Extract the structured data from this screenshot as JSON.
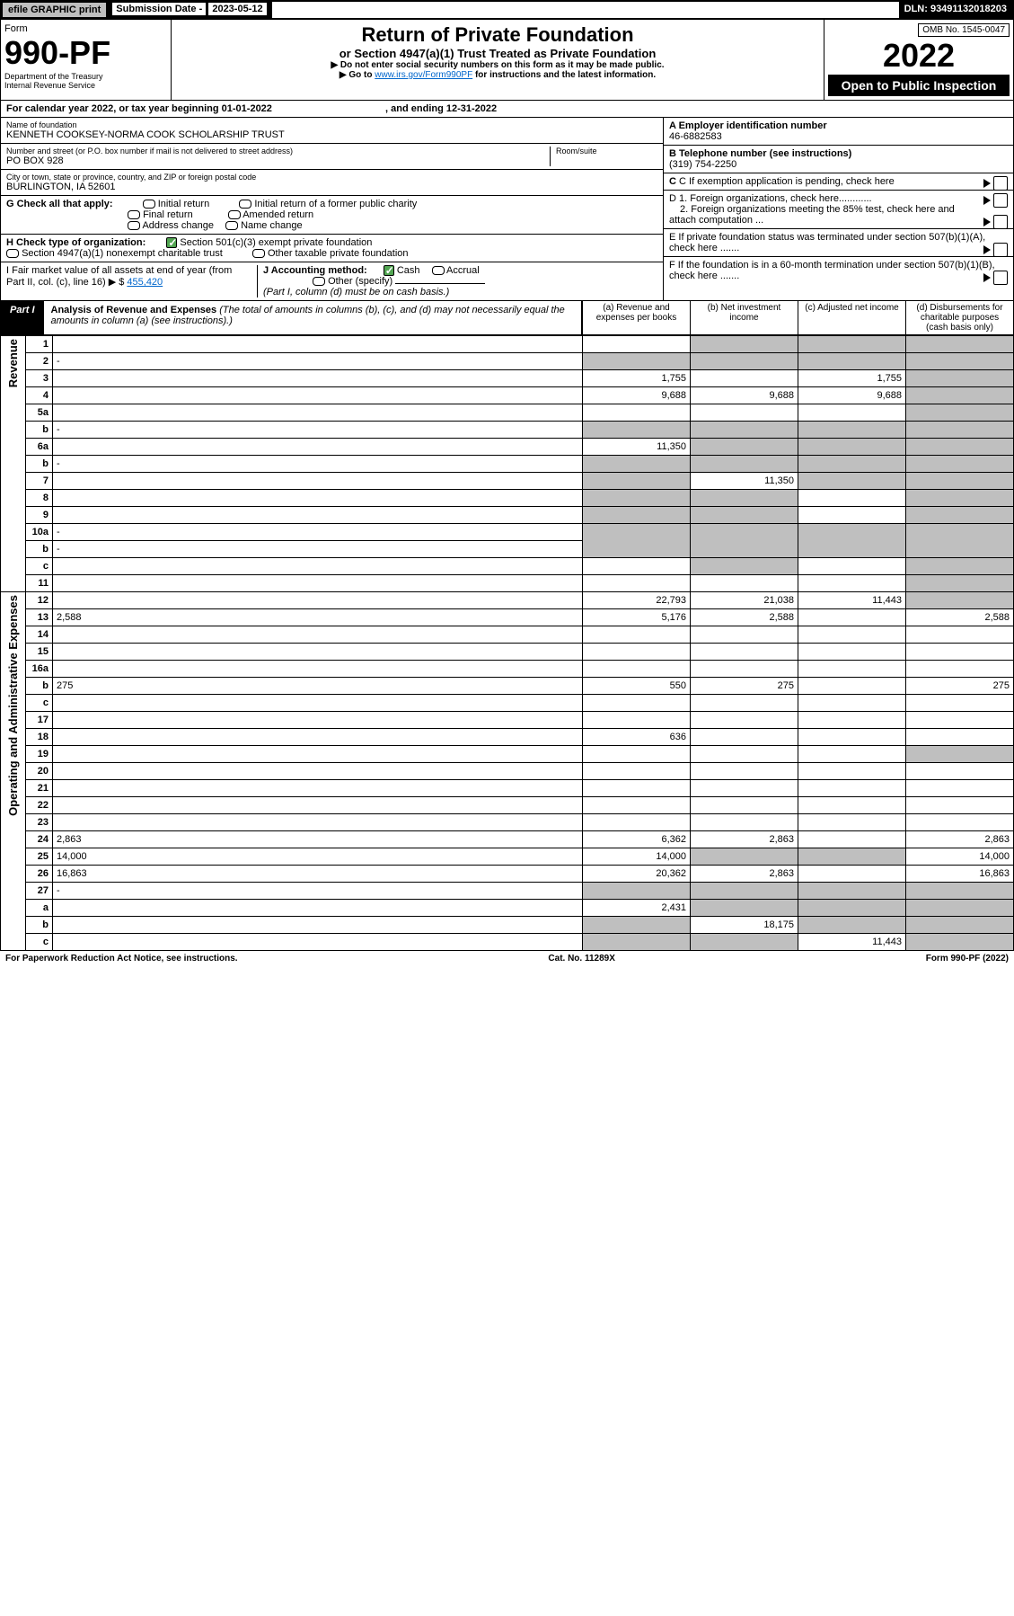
{
  "topbar": {
    "efile": "efile GRAPHIC print",
    "sub_label": "Submission Date -",
    "sub_date": "2023-05-12",
    "dln": "DLN: 93491132018203"
  },
  "header": {
    "form": "Form",
    "code": "990-PF",
    "dept": "Department of the Treasury",
    "irs": "Internal Revenue Service",
    "title": "Return of Private Foundation",
    "subtitle": "or Section 4947(a)(1) Trust Treated as Private Foundation",
    "note1": "▶ Do not enter social security numbers on this form as it may be made public.",
    "note2_a": "▶ Go to ",
    "note2_link": "www.irs.gov/Form990PF",
    "note2_b": " for instructions and the latest information.",
    "omb_label": "OMB No. 1545-0047",
    "year": "2022",
    "open": "Open to Public Inspection"
  },
  "calbar": {
    "a": "For calendar year 2022, or tax year beginning 01-01-2022",
    "b": ", and ending 12-31-2022"
  },
  "left": {
    "name_lbl": "Name of foundation",
    "name": "KENNETH COOKSEY-NORMA COOK SCHOLARSHIP TRUST",
    "addr_lbl": "Number and street (or P.O. box number if mail is not delivered to street address)",
    "addr": "PO BOX 928",
    "room_lbl": "Room/suite",
    "city_lbl": "City or town, state or province, country, and ZIP or foreign postal code",
    "city": "BURLINGTON, IA  52601",
    "G": "G Check all that apply:",
    "G1": "Initial return",
    "G2": "Final return",
    "G3": "Address change",
    "G4": "Initial return of a former public charity",
    "G5": "Amended return",
    "G6": "Name change",
    "H": "H Check type of organization:",
    "H1": "Section 501(c)(3) exempt private foundation",
    "H2": "Section 4947(a)(1) nonexempt charitable trust",
    "H3": "Other taxable private foundation",
    "I": "I Fair market value of all assets at end of year (from Part II, col. (c), line 16) ▶ $",
    "I_val": "455,420",
    "J": "J Accounting method:",
    "J1": "Cash",
    "J2": "Accrual",
    "J3": "Other (specify)",
    "J_note": "(Part I, column (d) must be on cash basis.)"
  },
  "right": {
    "A_lbl": "A Employer identification number",
    "A_val": "46-6882583",
    "B_lbl": "B Telephone number (see instructions)",
    "B_val": "(319) 754-2250",
    "C": "C If exemption application is pending, check here",
    "D1": "D 1. Foreign organizations, check here............",
    "D2": "2. Foreign organizations meeting the 85% test, check here and attach computation ...",
    "E": "E If private foundation status was terminated under section 507(b)(1)(A), check here .......",
    "F": "F If the foundation is in a 60-month termination under section 507(b)(1)(B), check here ......."
  },
  "partI": {
    "lbl": "Part I",
    "title": "Analysis of Revenue and Expenses",
    "sub": "(The total of amounts in columns (b), (c), and (d) may not necessarily equal the amounts in column (a) (see instructions).)",
    "ca": "(a) Revenue and expenses per books",
    "cb": "(b) Net investment income",
    "cc": "(c) Adjusted net income",
    "cd": "(d) Disbursements for charitable purposes (cash basis only)"
  },
  "sideLabels": {
    "rev": "Revenue",
    "exp": "Operating and Administrative Expenses"
  },
  "rows": [
    {
      "n": "1",
      "d": "",
      "a": "",
      "b": "",
      "c": "",
      "sb": "y",
      "sc": "y",
      "sd": "y"
    },
    {
      "n": "2",
      "d": "-",
      "a": "-",
      "b": "-",
      "c": "-"
    },
    {
      "n": "3",
      "d": "",
      "a": "1,755",
      "b": "",
      "c": "1,755",
      "sd": "y"
    },
    {
      "n": "4",
      "d": "",
      "a": "9,688",
      "b": "9,688",
      "c": "9,688",
      "sd": "y"
    },
    {
      "n": "5a",
      "d": "",
      "a": "",
      "b": "",
      "c": "",
      "sd": "y"
    },
    {
      "n": "b",
      "d": "-",
      "a": "-",
      "b": "-",
      "c": "-",
      "sa": "y",
      "sb": "y",
      "sc": "y",
      "sd": "y"
    },
    {
      "n": "6a",
      "d": "",
      "a": "11,350",
      "b": "",
      "c": "",
      "sb": "y",
      "sc": "y",
      "sd": "y"
    },
    {
      "n": "b",
      "d": "-",
      "a": "-",
      "b": "-",
      "c": "-",
      "sa": "y",
      "sb": "y",
      "sc": "y",
      "sd": "y"
    },
    {
      "n": "7",
      "d": "",
      "a": "",
      "b": "11,350",
      "c": "",
      "sa": "y",
      "sc": "y",
      "sd": "y"
    },
    {
      "n": "8",
      "d": "",
      "a": "",
      "b": "",
      "c": "",
      "sa": "y",
      "sb": "y",
      "sd": "y"
    },
    {
      "n": "9",
      "d": "",
      "a": "",
      "b": "",
      "c": "",
      "sa": "y",
      "sb": "y",
      "sd": "y"
    },
    {
      "n": "10a",
      "d": "-",
      "a": "-",
      "b": "-",
      "c": "-",
      "sa": "y",
      "sb": "y",
      "sc": "y",
      "sd": "y"
    },
    {
      "n": "b",
      "d": "-",
      "a": "-",
      "b": "-",
      "c": "-",
      "sa": "y",
      "sb": "y",
      "sc": "y",
      "sd": "y"
    },
    {
      "n": "c",
      "d": "",
      "a": "",
      "b": "",
      "c": "",
      "sb": "y",
      "sd": "y"
    },
    {
      "n": "11",
      "d": "",
      "a": "",
      "b": "",
      "c": "",
      "sd": "y"
    },
    {
      "n": "12",
      "d": "",
      "a": "22,793",
      "b": "21,038",
      "c": "11,443",
      "sd": "y"
    },
    {
      "n": "13",
      "d": "2,588",
      "a": "5,176",
      "b": "2,588",
      "c": ""
    },
    {
      "n": "14",
      "d": "",
      "a": "",
      "b": "",
      "c": ""
    },
    {
      "n": "15",
      "d": "",
      "a": "",
      "b": "",
      "c": ""
    },
    {
      "n": "16a",
      "d": "",
      "a": "",
      "b": "",
      "c": ""
    },
    {
      "n": "b",
      "d": "275",
      "a": "550",
      "b": "275",
      "c": ""
    },
    {
      "n": "c",
      "d": "",
      "a": "",
      "b": "",
      "c": ""
    },
    {
      "n": "17",
      "d": "",
      "a": "",
      "b": "",
      "c": ""
    },
    {
      "n": "18",
      "d": "",
      "a": "636",
      "b": "",
      "c": ""
    },
    {
      "n": "19",
      "d": "",
      "a": "",
      "b": "",
      "c": "",
      "sd": "y"
    },
    {
      "n": "20",
      "d": "",
      "a": "",
      "b": "",
      "c": ""
    },
    {
      "n": "21",
      "d": "",
      "a": "",
      "b": "",
      "c": ""
    },
    {
      "n": "22",
      "d": "",
      "a": "",
      "b": "",
      "c": ""
    },
    {
      "n": "23",
      "d": "",
      "a": "",
      "b": "",
      "c": ""
    },
    {
      "n": "24",
      "d": "2,863",
      "a": "6,362",
      "b": "2,863",
      "c": ""
    },
    {
      "n": "25",
      "d": "14,000",
      "a": "14,000",
      "b": "",
      "c": "",
      "sb": "y",
      "sc": "y"
    },
    {
      "n": "26",
      "d": "16,863",
      "a": "20,362",
      "b": "2,863",
      "c": ""
    },
    {
      "n": "27",
      "d": "-",
      "a": "-",
      "b": "-",
      "c": "-",
      "sa": "y",
      "sb": "y",
      "sc": "y",
      "sd": "y"
    },
    {
      "n": "a",
      "d": "",
      "a": "2,431",
      "b": "",
      "c": "",
      "sb": "y",
      "sc": "y",
      "sd": "y"
    },
    {
      "n": "b",
      "d": "",
      "a": "",
      "b": "18,175",
      "c": "",
      "sa": "y",
      "sc": "y",
      "sd": "y"
    },
    {
      "n": "c",
      "d": "",
      "a": "",
      "b": "",
      "c": "11,443",
      "sa": "y",
      "sb": "y",
      "sd": "y"
    }
  ],
  "footer": {
    "a": "For Paperwork Reduction Act Notice, see instructions.",
    "b": "Cat. No. 11289X",
    "c": "Form 990-PF (2022)"
  }
}
